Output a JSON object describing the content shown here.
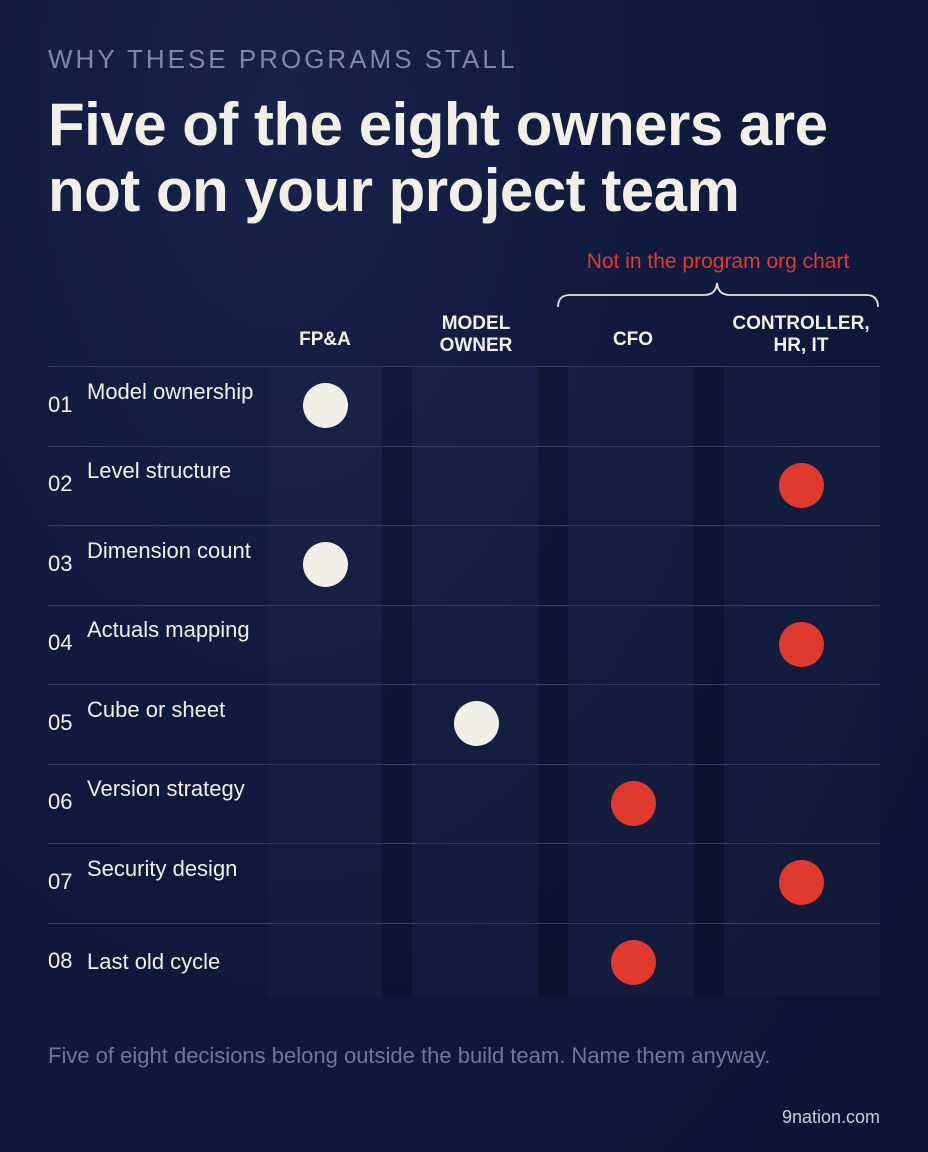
{
  "eyebrow": "WHY THESE PROGRAMS STALL",
  "title": "Five of the eight owners are not on your project team",
  "bracket_label": "Not in the program org chart",
  "columns": [
    {
      "line1": "FP&A",
      "line2": ""
    },
    {
      "line1": "MODEL",
      "line2": "OWNER"
    },
    {
      "line1": "CFO",
      "line2": ""
    },
    {
      "line1": "CONTROLLER,",
      "line2": "HR, IT"
    }
  ],
  "rows": [
    {
      "num": "01",
      "label": "Model ownership",
      "owner": 0,
      "color": "white"
    },
    {
      "num": "02",
      "label": "Level structure",
      "owner": 3,
      "color": "red"
    },
    {
      "num": "03",
      "label": "Dimension count",
      "owner": 0,
      "color": "white"
    },
    {
      "num": "04",
      "label": "Actuals mapping",
      "owner": 3,
      "color": "red"
    },
    {
      "num": "05",
      "label": "Cube or sheet",
      "owner": 1,
      "color": "white"
    },
    {
      "num": "06",
      "label": "Version strategy",
      "owner": 2,
      "color": "red"
    },
    {
      "num": "07",
      "label": "Security design",
      "owner": 3,
      "color": "red"
    },
    {
      "num": "08",
      "label": "Last old cycle",
      "owner": 2,
      "color": "red"
    }
  ],
  "colors": {
    "inside": "#f2efe6",
    "outside": "#e0392e"
  },
  "footer": "Five of eight decisions belong outside the build team. Name them anyway.",
  "credit": "9nation.com"
}
